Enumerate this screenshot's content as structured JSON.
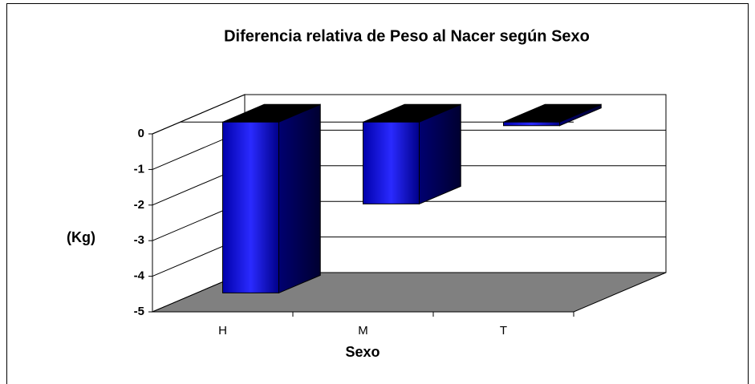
{
  "chart_data": {
    "type": "bar3d",
    "title": "Diferencia relativa de Peso al Nacer según Sexo",
    "categories": [
      "H",
      "M",
      "T"
    ],
    "values": [
      -4.8,
      -2.3,
      -0.1
    ],
    "color": "#0000cc",
    "ylim": [
      -5,
      0
    ],
    "yticks": [
      0,
      -1,
      -2,
      -3,
      -4,
      -5
    ],
    "grid": true,
    "y_label": "(Kg)",
    "x_label": "Sexo"
  }
}
